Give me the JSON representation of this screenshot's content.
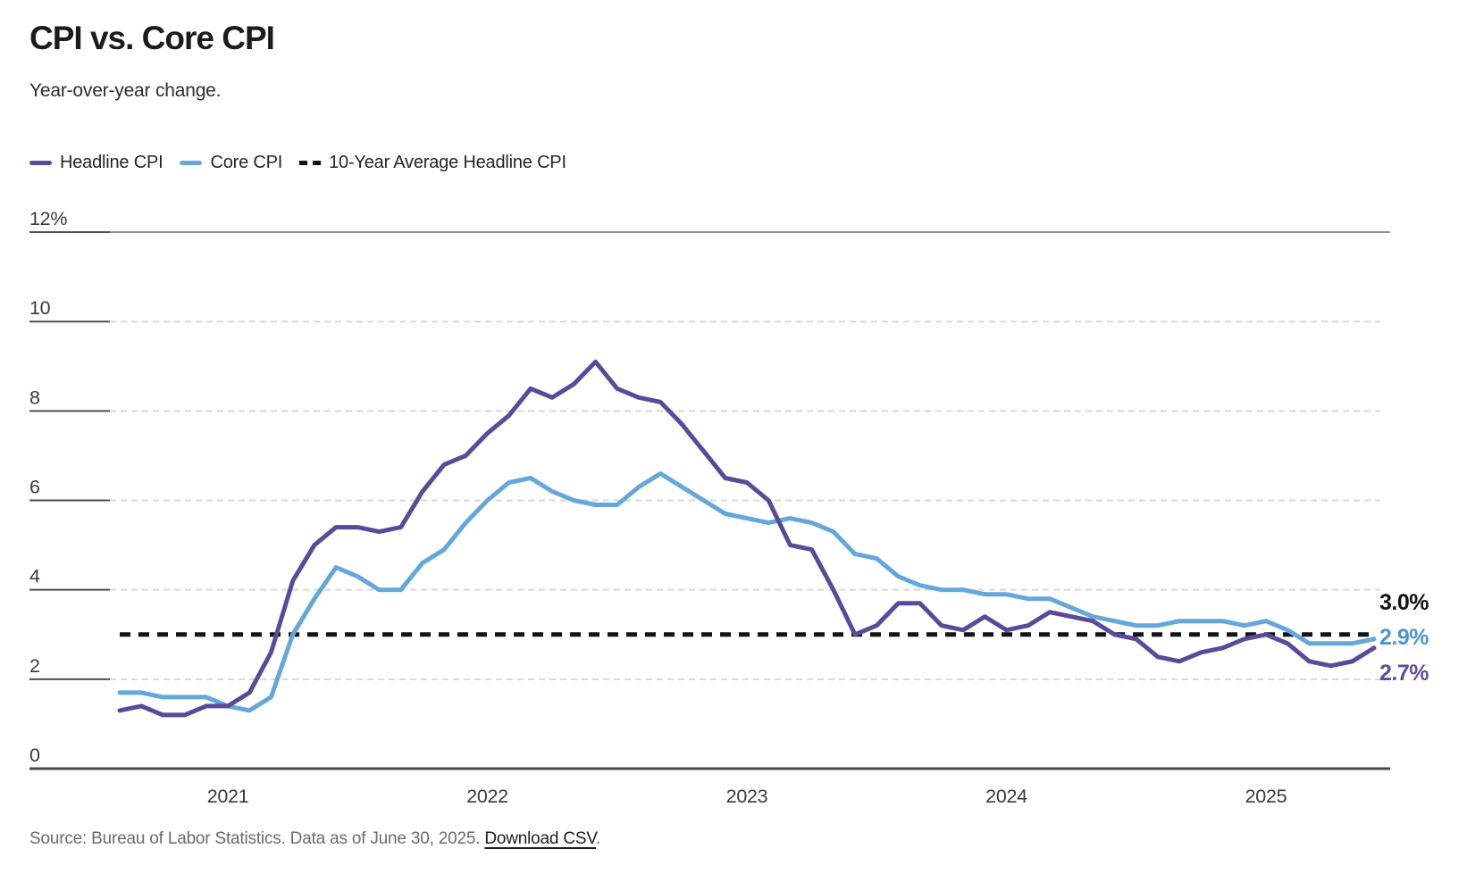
{
  "header": {
    "title": "CPI vs. Core CPI",
    "subtitle": "Year-over-year change."
  },
  "legend": [
    {
      "label": "Headline CPI",
      "color": "#5a4a9a",
      "style": "solid"
    },
    {
      "label": "Core CPI",
      "color": "#63a7db",
      "style": "solid"
    },
    {
      "label": "10-Year Average Headline CPI",
      "color": "#111111",
      "style": "dashed"
    }
  ],
  "end_labels": [
    {
      "text": "3.0%",
      "color": "#111111",
      "series": "10-Year Average Headline CPI"
    },
    {
      "text": "2.9%",
      "color": "#4d95ce",
      "series": "Core CPI"
    },
    {
      "text": "2.7%",
      "color": "#5f4c9e",
      "series": "Headline CPI"
    }
  ],
  "source": {
    "prefix": "Source: Bureau of Labor Statistics. Data as of June 30, 2025. ",
    "link_label": "Download CSV",
    "suffix": "."
  },
  "chart_data": {
    "type": "line",
    "title": "CPI vs. Core CPI",
    "subtitle": "Year-over-year change.",
    "unit": "percent, year-over-year change",
    "frequency": "monthly",
    "x_start": "2020-08",
    "x_end": "2025-06",
    "ylim": [
      0,
      12
    ],
    "grid": "horizontal-dashed",
    "legend_position": "top-left",
    "y_ticks": [
      {
        "value": 0,
        "label": "0"
      },
      {
        "value": 2,
        "label": "2"
      },
      {
        "value": 4,
        "label": "4"
      },
      {
        "value": 6,
        "label": "6"
      },
      {
        "value": 8,
        "label": "8"
      },
      {
        "value": 10,
        "label": "10"
      },
      {
        "value": 12,
        "label": "12%"
      }
    ],
    "x_ticks": [
      {
        "label": "2021",
        "month_index": 5
      },
      {
        "label": "2022",
        "month_index": 17
      },
      {
        "label": "2023",
        "month_index": 29
      },
      {
        "label": "2024",
        "month_index": 41
      },
      {
        "label": "2025",
        "month_index": 53
      }
    ],
    "series": [
      {
        "name": "Headline CPI",
        "color": "#5a4a9a",
        "style": "solid",
        "end_value_label": "2.7%",
        "values": [
          1.3,
          1.4,
          1.2,
          1.2,
          1.4,
          1.4,
          1.7,
          2.6,
          4.2,
          5.0,
          5.4,
          5.4,
          5.3,
          5.4,
          6.2,
          6.8,
          7.0,
          7.5,
          7.9,
          8.5,
          8.3,
          8.6,
          9.1,
          8.5,
          8.3,
          8.2,
          7.7,
          7.1,
          6.5,
          6.4,
          6.0,
          5.0,
          4.9,
          4.0,
          3.0,
          3.2,
          3.7,
          3.7,
          3.2,
          3.1,
          3.4,
          3.1,
          3.2,
          3.5,
          3.4,
          3.3,
          3.0,
          2.9,
          2.5,
          2.4,
          2.6,
          2.7,
          2.9,
          3.0,
          2.8,
          2.4,
          2.3,
          2.4,
          2.7
        ]
      },
      {
        "name": "Core CPI",
        "color": "#63a7db",
        "style": "solid",
        "end_value_label": "2.9%",
        "values": [
          1.7,
          1.7,
          1.6,
          1.6,
          1.6,
          1.4,
          1.3,
          1.6,
          3.0,
          3.8,
          4.5,
          4.3,
          4.0,
          4.0,
          4.6,
          4.9,
          5.5,
          6.0,
          6.4,
          6.5,
          6.2,
          6.0,
          5.9,
          5.9,
          6.3,
          6.6,
          6.3,
          6.0,
          5.7,
          5.6,
          5.5,
          5.6,
          5.5,
          5.3,
          4.8,
          4.7,
          4.3,
          4.1,
          4.0,
          4.0,
          3.9,
          3.9,
          3.8,
          3.8,
          3.6,
          3.4,
          3.3,
          3.2,
          3.2,
          3.3,
          3.3,
          3.3,
          3.2,
          3.3,
          3.1,
          2.8,
          2.8,
          2.8,
          2.9
        ]
      },
      {
        "name": "10-Year Average Headline CPI",
        "color": "#141414",
        "style": "dashed",
        "constant_value": 3.0,
        "end_value_label": "3.0%"
      }
    ]
  }
}
